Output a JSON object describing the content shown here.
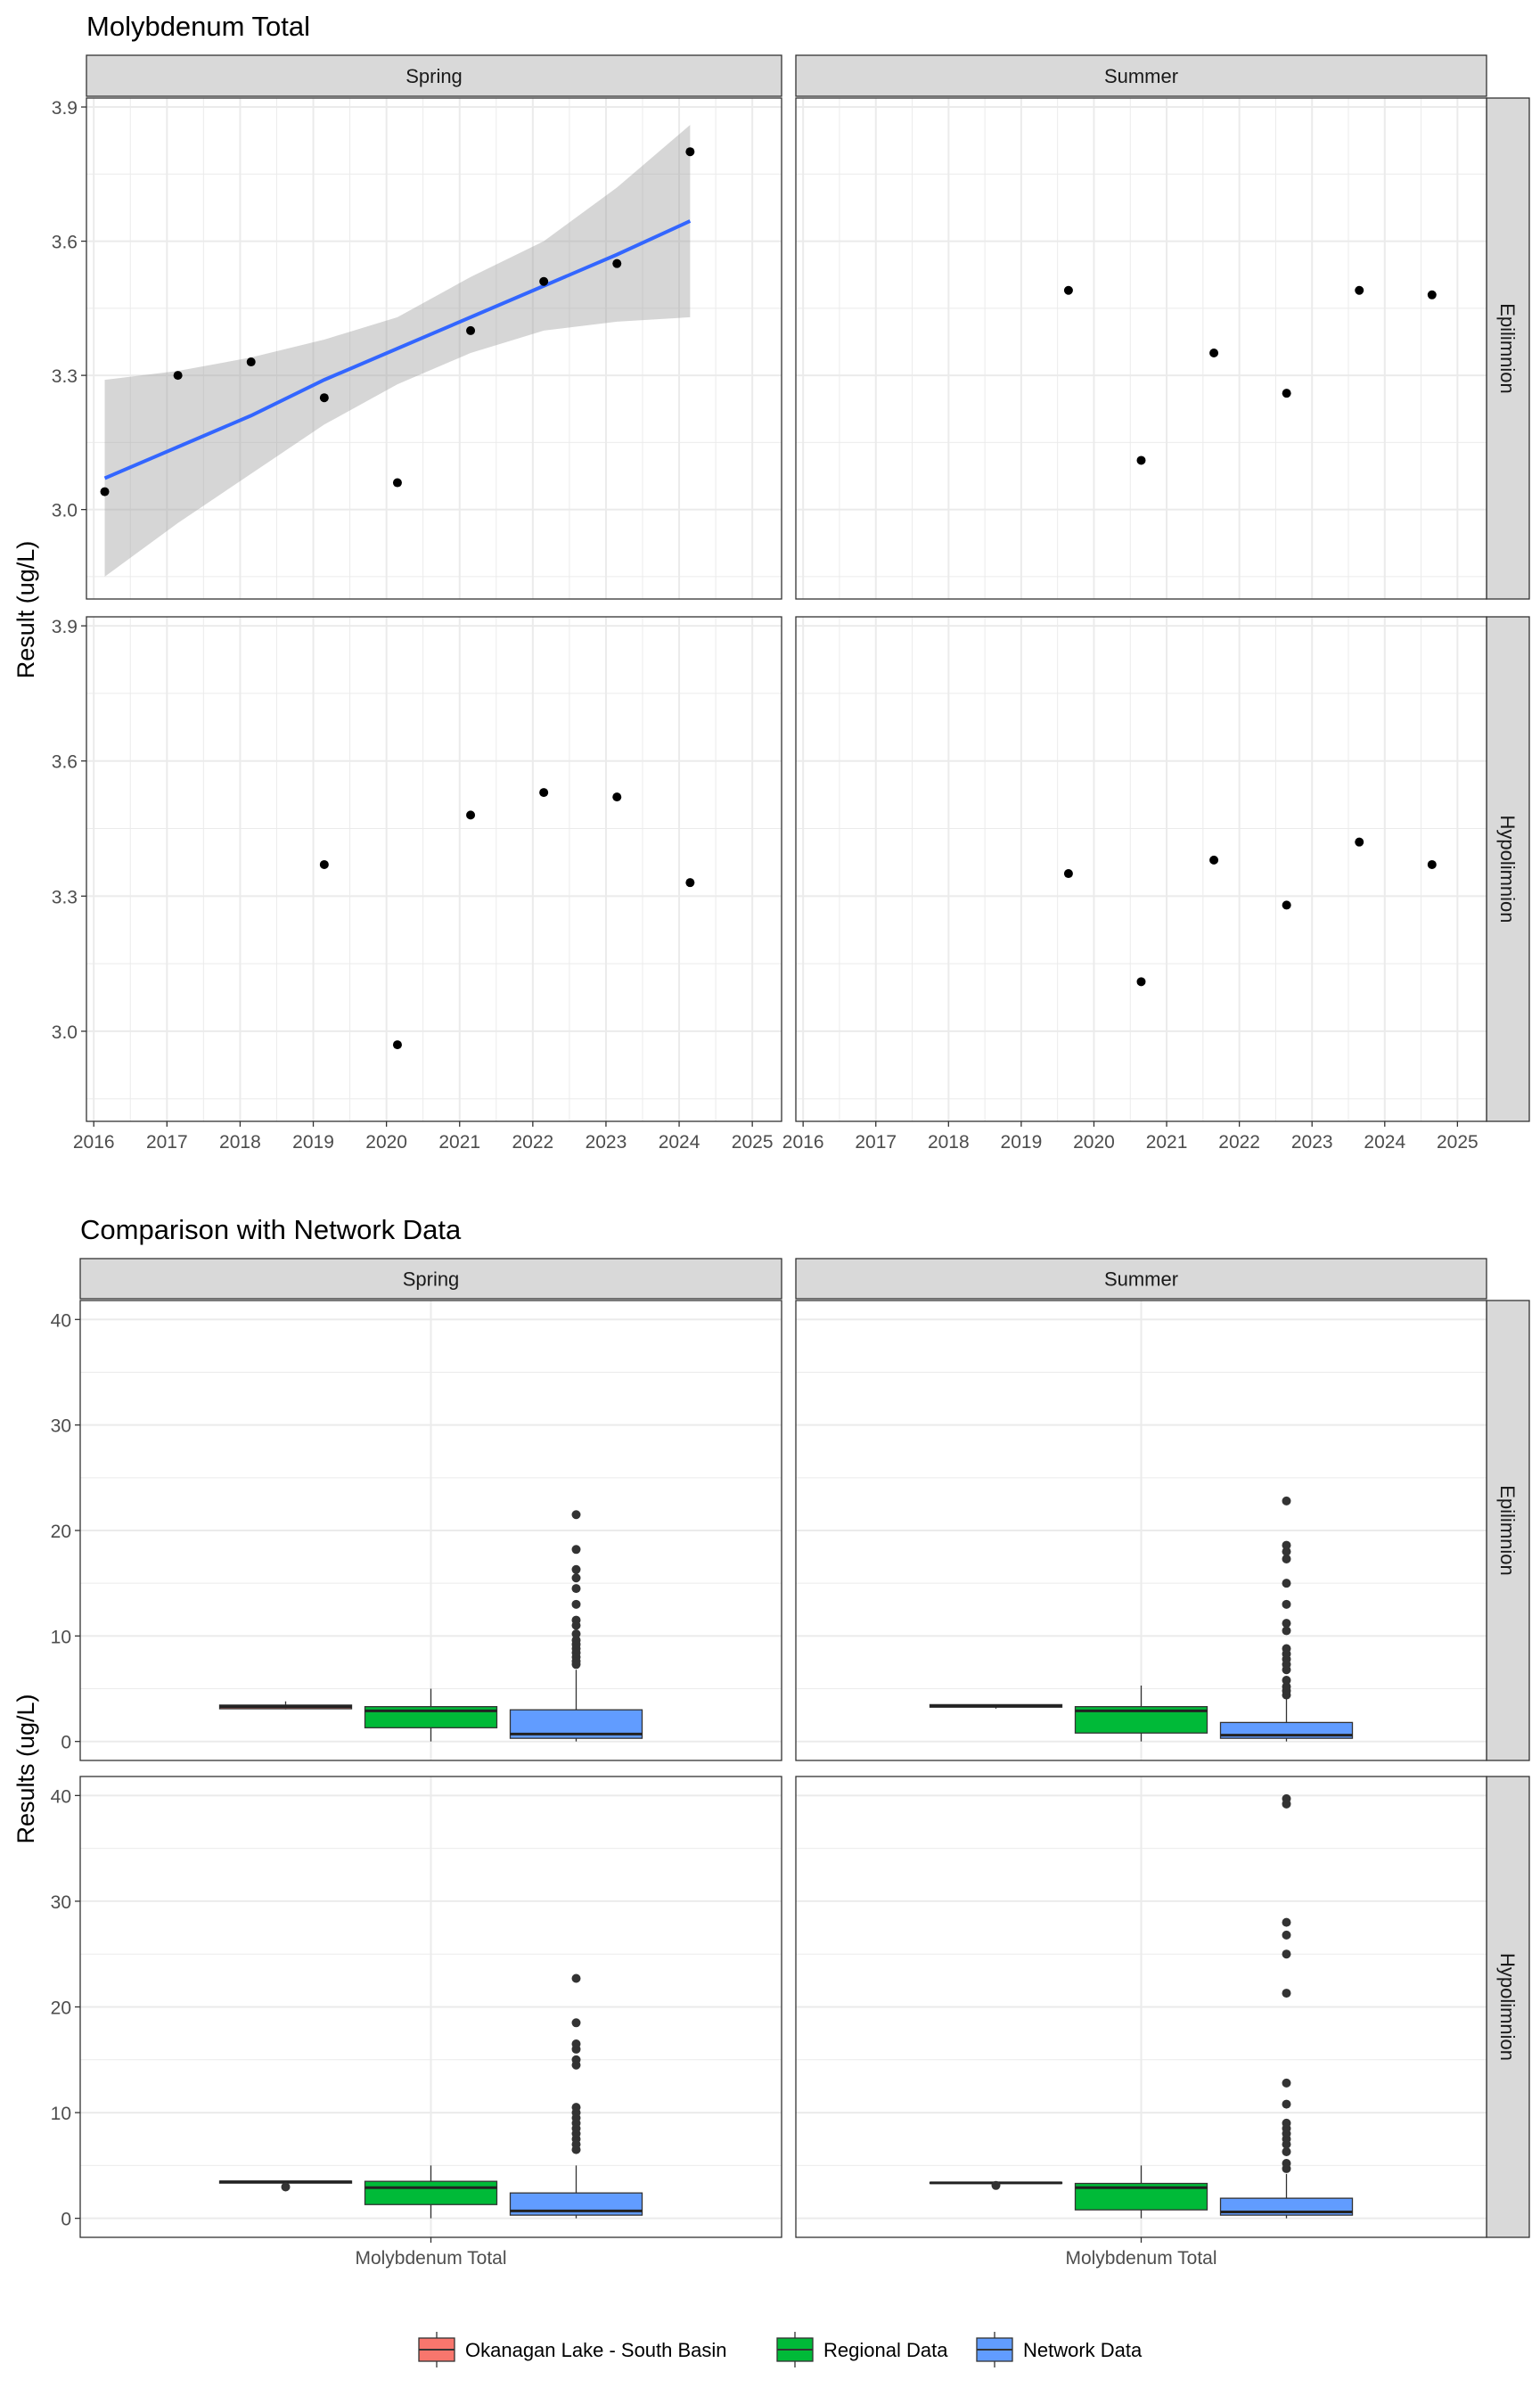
{
  "colors": {
    "strip_fill": "#d9d9d9",
    "grid": "#ebebeb",
    "trend_line": "#3366ff",
    "ribbon": "#999999",
    "point": "#000000",
    "okanagan": "#f8766d",
    "regional": "#00ba38",
    "network": "#619cff"
  },
  "chart_data": [
    {
      "type": "scatter",
      "title": "Molybdenum Total",
      "ylabel": "Result (ug/L)",
      "xlabel": "",
      "x_ticks": [
        2016,
        2017,
        2018,
        2019,
        2020,
        2021,
        2022,
        2023,
        2024,
        2025
      ],
      "xlim": [
        2015.9,
        2025.4
      ],
      "y_ticks": [
        3.0,
        3.3,
        3.6,
        3.9
      ],
      "ylim": [
        2.8,
        3.92
      ],
      "grid": true,
      "columns": [
        "Spring",
        "Summer"
      ],
      "rows": [
        "Epilimnion",
        "Hypolimnion"
      ],
      "panels": [
        {
          "col": "Spring",
          "row": "Epilimnion",
          "points": [
            [
              2016.15,
              3.04
            ],
            [
              2017.15,
              3.3
            ],
            [
              2018.15,
              3.33
            ],
            [
              2019.15,
              3.25
            ],
            [
              2020.15,
              3.06
            ],
            [
              2021.15,
              3.4
            ],
            [
              2022.15,
              3.51
            ],
            [
              2023.15,
              3.55
            ],
            [
              2024.15,
              3.8
            ]
          ],
          "trend": {
            "x": [
              2016.15,
              2017.15,
              2018.15,
              2019.15,
              2020.15,
              2021.15,
              2022.15,
              2023.15,
              2024.15
            ],
            "fit": [
              3.07,
              3.14,
              3.21,
              3.29,
              3.36,
              3.43,
              3.5,
              3.57,
              3.645
            ],
            "lower": [
              2.85,
              2.97,
              3.08,
              3.19,
              3.28,
              3.35,
              3.4,
              3.42,
              3.43
            ],
            "upper": [
              3.29,
              3.31,
              3.34,
              3.38,
              3.43,
              3.52,
              3.6,
              3.72,
              3.86
            ]
          }
        },
        {
          "col": "Summer",
          "row": "Epilimnion",
          "points": [
            [
              2019.65,
              3.49
            ],
            [
              2020.65,
              3.11
            ],
            [
              2021.65,
              3.35
            ],
            [
              2022.65,
              3.26
            ],
            [
              2023.65,
              3.49
            ],
            [
              2024.65,
              3.48
            ]
          ]
        },
        {
          "col": "Spring",
          "row": "Hypolimnion",
          "points": [
            [
              2019.15,
              3.37
            ],
            [
              2020.15,
              2.97
            ],
            [
              2021.15,
              3.48
            ],
            [
              2022.15,
              3.53
            ],
            [
              2023.15,
              3.52
            ],
            [
              2024.15,
              3.33
            ]
          ]
        },
        {
          "col": "Summer",
          "row": "Hypolimnion",
          "points": [
            [
              2019.65,
              3.35
            ],
            [
              2020.65,
              3.11
            ],
            [
              2021.65,
              3.38
            ],
            [
              2022.65,
              3.28
            ],
            [
              2023.65,
              3.42
            ],
            [
              2024.65,
              3.37
            ]
          ]
        }
      ]
    },
    {
      "type": "box",
      "title": "Comparison with Network Data",
      "ylabel": "Results (ug/L)",
      "xlabel": "",
      "category": "Molybdenum Total",
      "y_ticks": [
        0,
        10,
        20,
        30,
        40
      ],
      "ylim": [
        -1.8,
        41.8
      ],
      "grid": true,
      "columns": [
        "Spring",
        "Summer"
      ],
      "rows": [
        "Epilimnion",
        "Hypolimnion"
      ],
      "legend": {
        "position": "bottom",
        "entries": [
          "Okanagan Lake - South Basin",
          "Regional Data",
          "Network Data"
        ]
      },
      "panels": [
        {
          "col": "Spring",
          "row": "Epilimnion",
          "boxes": [
            {
              "group": "Okanagan Lake - South Basin",
              "min": 3.04,
              "q1": 3.1,
              "median": 3.3,
              "q3": 3.45,
              "max": 3.8,
              "outliers": []
            },
            {
              "group": "Regional Data",
              "min": 0.0,
              "q1": 1.3,
              "median": 2.9,
              "q3": 3.3,
              "max": 5.0,
              "outliers": []
            },
            {
              "group": "Network Data",
              "min": 0.0,
              "q1": 0.3,
              "median": 0.7,
              "q3": 3.0,
              "max": 6.8,
              "outliers": [
                7.3,
                7.6,
                8.0,
                8.4,
                8.8,
                9.2,
                9.6,
                10.2,
                11.0,
                11.5,
                13.0,
                14.5,
                15.5,
                16.3,
                18.2,
                21.5
              ]
            }
          ]
        },
        {
          "col": "Summer",
          "row": "Epilimnion",
          "boxes": [
            {
              "group": "Okanagan Lake - South Basin",
              "min": 3.11,
              "q1": 3.25,
              "median": 3.35,
              "q3": 3.49,
              "max": 3.49,
              "outliers": []
            },
            {
              "group": "Regional Data",
              "min": 0.0,
              "q1": 0.8,
              "median": 2.9,
              "q3": 3.3,
              "max": 5.3,
              "outliers": []
            },
            {
              "group": "Network Data",
              "min": 0.0,
              "q1": 0.3,
              "median": 0.6,
              "q3": 1.8,
              "max": 4.0,
              "outliers": [
                4.4,
                4.8,
                5.2,
                5.8,
                6.8,
                7.3,
                7.8,
                8.3,
                8.8,
                10.5,
                11.2,
                13.0,
                15.0,
                17.3,
                18.0,
                18.6,
                22.8
              ]
            }
          ]
        },
        {
          "col": "Spring",
          "row": "Hypolimnion",
          "boxes": [
            {
              "group": "Okanagan Lake - South Basin",
              "min": 3.33,
              "q1": 3.33,
              "median": 3.45,
              "q3": 3.52,
              "max": 3.53,
              "outliers": [
                2.97
              ]
            },
            {
              "group": "Regional Data",
              "min": 0.0,
              "q1": 1.3,
              "median": 2.9,
              "q3": 3.5,
              "max": 5.0,
              "outliers": []
            },
            {
              "group": "Network Data",
              "min": 0.0,
              "q1": 0.3,
              "median": 0.7,
              "q3": 2.4,
              "max": 5.0,
              "outliers": [
                6.5,
                7.0,
                7.5,
                8.0,
                8.5,
                9.0,
                9.5,
                10.0,
                10.5,
                14.5,
                15.0,
                16.0,
                16.5,
                18.5,
                22.7
              ]
            }
          ]
        },
        {
          "col": "Summer",
          "row": "Hypolimnion",
          "boxes": [
            {
              "group": "Okanagan Lake - South Basin",
              "min": 3.28,
              "q1": 3.3,
              "median": 3.36,
              "q3": 3.4,
              "max": 3.42,
              "outliers": [
                3.11
              ]
            },
            {
              "group": "Regional Data",
              "min": 0.0,
              "q1": 0.8,
              "median": 2.9,
              "q3": 3.3,
              "max": 5.0,
              "outliers": []
            },
            {
              "group": "Network Data",
              "min": 0.0,
              "q1": 0.3,
              "median": 0.6,
              "q3": 1.9,
              "max": 4.2,
              "outliers": [
                4.7,
                5.2,
                6.3,
                7.0,
                7.5,
                8.0,
                8.5,
                9.0,
                10.8,
                12.8,
                21.3,
                25.0,
                26.8,
                28.0,
                39.2,
                39.7
              ]
            }
          ]
        }
      ]
    }
  ]
}
